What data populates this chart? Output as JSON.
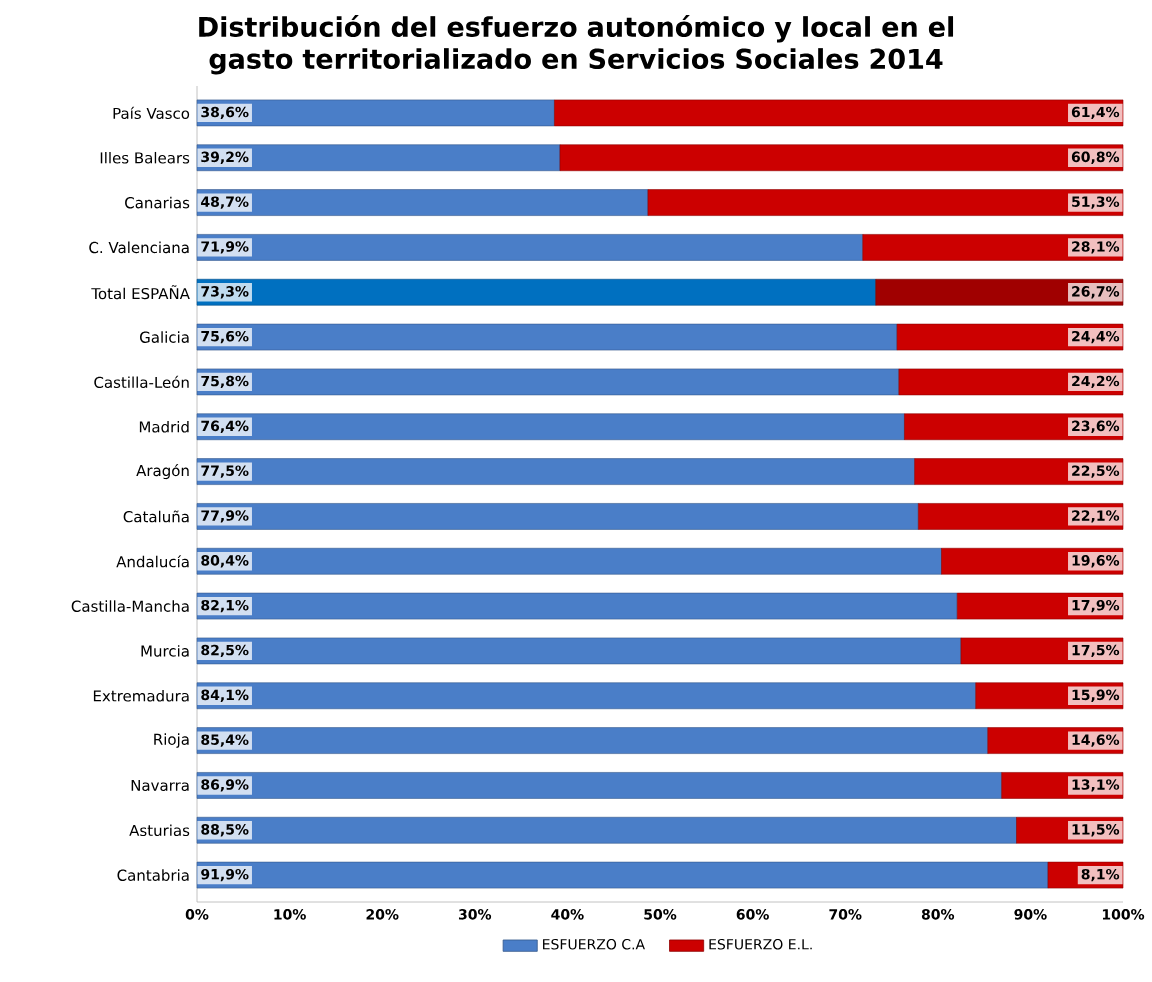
{
  "chart_data": {
    "type": "bar",
    "orientation": "horizontal",
    "stacked": true,
    "title": "Distribución del esfuerzo autonómico y local en el gasto territorializado en Servicios Sociales 2014",
    "categories": [
      "País Vasco",
      "Illes Balears",
      "Canarias",
      "C. Valenciana",
      "Total  ESPAÑA",
      "Galicia",
      "Castilla-León",
      "Madrid",
      "Aragón",
      "Cataluña",
      "Andalucía",
      "Castilla-Mancha",
      "Murcia",
      "Extremadura",
      "Rioja",
      "Navarra",
      "Asturias",
      "Cantabria"
    ],
    "series": [
      {
        "name": "ESFUERZO C.A",
        "color": "#4a7ec8",
        "colors": [
          "#4a7ec8",
          "#4a7ec8",
          "#4a7ec8",
          "#4a7ec8",
          "#0070c0",
          "#4a7ec8",
          "#4a7ec8",
          "#4a7ec8",
          "#4a7ec8",
          "#4a7ec8",
          "#4a7ec8",
          "#4a7ec8",
          "#4a7ec8",
          "#4a7ec8",
          "#4a7ec8",
          "#4a7ec8",
          "#4a7ec8",
          "#4a7ec8"
        ],
        "values": [
          38.6,
          39.2,
          48.7,
          71.9,
          73.3,
          75.6,
          75.8,
          76.4,
          77.5,
          77.9,
          80.4,
          82.1,
          82.5,
          84.1,
          85.4,
          86.9,
          88.5,
          91.9
        ],
        "value_labels": [
          "38,6%",
          "39,2%",
          "48,7%",
          "71,9%",
          "73,3%",
          "75,6%",
          "75,8%",
          "76,4%",
          "77,5%",
          "77,9%",
          "80,4%",
          "82,1%",
          "82,5%",
          "84,1%",
          "85,4%",
          "86,9%",
          "88,5%",
          "91,9%"
        ]
      },
      {
        "name": "ESFUERZO E.L.",
        "color": "#cc0000",
        "colors": [
          "#cc0000",
          "#cc0000",
          "#cc0000",
          "#cc0000",
          "#a00000",
          "#cc0000",
          "#cc0000",
          "#cc0000",
          "#cc0000",
          "#cc0000",
          "#cc0000",
          "#cc0000",
          "#cc0000",
          "#cc0000",
          "#cc0000",
          "#cc0000",
          "#cc0000",
          "#cc0000"
        ],
        "values": [
          61.4,
          60.8,
          51.3,
          28.1,
          26.7,
          24.4,
          24.2,
          23.6,
          22.5,
          22.1,
          19.6,
          17.9,
          17.5,
          15.9,
          14.6,
          13.1,
          11.5,
          8.1
        ],
        "value_labels": [
          "61,4%",
          "60,8%",
          "51,3%",
          "28,1%",
          "26,7%",
          "24,4%",
          "24,2%",
          "23,6%",
          "22,5%",
          "22,1%",
          "19,6%",
          "17,9%",
          "17,5%",
          "15,9%",
          "14,6%",
          "13,1%",
          "11,5%",
          "8,1%"
        ]
      }
    ],
    "xlim": [
      0,
      100
    ],
    "xticks": [
      {
        "value": 0,
        "label": "0%"
      },
      {
        "value": 10,
        "label": "10%"
      },
      {
        "value": 20,
        "label": "20%"
      },
      {
        "value": 30,
        "label": "30%"
      },
      {
        "value": 40,
        "label": "40%"
      },
      {
        "value": 50,
        "label": "50%"
      },
      {
        "value": 60,
        "label": "60%"
      },
      {
        "value": 70,
        "label": "70%"
      },
      {
        "value": 80,
        "label": "80%"
      },
      {
        "value": 90,
        "label": "90%"
      },
      {
        "value": 100,
        "label": "100%"
      }
    ],
    "legend": "bottom"
  }
}
